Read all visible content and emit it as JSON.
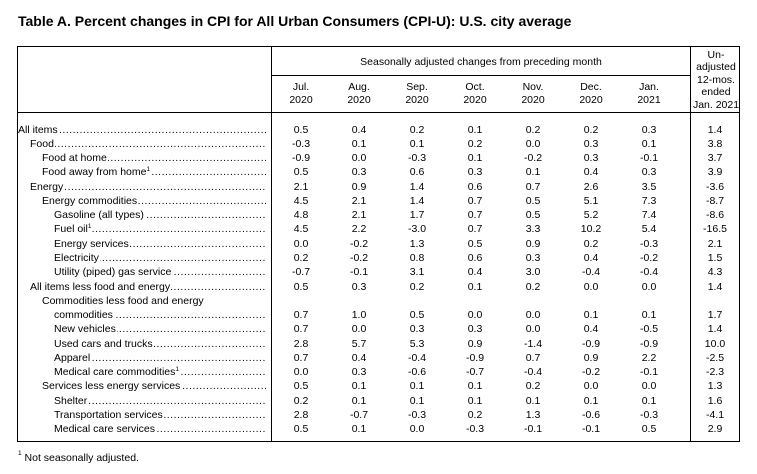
{
  "title": "Table A. Percent changes in CPI for All Urban Consumers (CPI-U): U.S. city average",
  "superheader": "Seasonally adjusted changes from preceding month",
  "columns": [
    {
      "line1": "Jul.",
      "line2": "2020"
    },
    {
      "line1": "Aug.",
      "line2": "2020"
    },
    {
      "line1": "Sep.",
      "line2": "2020"
    },
    {
      "line1": "Oct.",
      "line2": "2020"
    },
    {
      "line1": "Nov.",
      "line2": "2020"
    },
    {
      "line1": "Dec.",
      "line2": "2020"
    },
    {
      "line1": "Jan.",
      "line2": "2021"
    }
  ],
  "unadjusted_header": [
    "Un-",
    "adjusted",
    "12-mos.",
    "ended",
    "Jan. 2021"
  ],
  "rows": [
    {
      "label": "All items",
      "sup": "",
      "values": [
        "0.5",
        "0.4",
        "0.2",
        "0.1",
        "0.2",
        "0.2",
        "0.3",
        "1.4"
      ]
    },
    {
      "label": "Food",
      "sup": "",
      "values": [
        "-0.3",
        "0.1",
        "0.1",
        "0.2",
        "0.0",
        "0.3",
        "0.1",
        "3.8"
      ]
    },
    {
      "label": "Food at home",
      "sup": "",
      "values": [
        "-0.9",
        "0.0",
        "-0.3",
        "0.1",
        "-0.2",
        "0.3",
        "-0.1",
        "3.7"
      ]
    },
    {
      "label": "Food away from home",
      "sup": "1",
      "values": [
        "0.5",
        "0.3",
        "0.6",
        "0.3",
        "0.1",
        "0.4",
        "0.3",
        "3.9"
      ]
    },
    {
      "label": "Energy",
      "sup": "",
      "values": [
        "2.1",
        "0.9",
        "1.4",
        "0.6",
        "0.7",
        "2.6",
        "3.5",
        "-3.6"
      ]
    },
    {
      "label": "Energy commodities",
      "sup": "",
      "values": [
        "4.5",
        "2.1",
        "1.4",
        "0.7",
        "0.5",
        "5.1",
        "7.3",
        "-8.7"
      ]
    },
    {
      "label": "Gasoline (all types)",
      "sup": "",
      "values": [
        "4.8",
        "2.1",
        "1.7",
        "0.7",
        "0.5",
        "5.2",
        "7.4",
        "-8.6"
      ]
    },
    {
      "label": "Fuel oil",
      "sup": "1",
      "values": [
        "4.5",
        "2.2",
        "-3.0",
        "0.7",
        "3.3",
        "10.2",
        "5.4",
        "-16.5"
      ]
    },
    {
      "label": "Energy services",
      "sup": "",
      "values": [
        "0.0",
        "-0.2",
        "1.3",
        "0.5",
        "0.9",
        "0.2",
        "-0.3",
        "2.1"
      ]
    },
    {
      "label": "Electricity",
      "sup": "",
      "values": [
        "0.2",
        "-0.2",
        "0.8",
        "0.6",
        "0.3",
        "0.4",
        "-0.2",
        "1.5"
      ]
    },
    {
      "label": "Utility (piped) gas service",
      "sup": "",
      "values": [
        "-0.7",
        "-0.1",
        "3.1",
        "0.4",
        "3.0",
        "-0.4",
        "-0.4",
        "4.3"
      ]
    },
    {
      "label": "All items less food and energy",
      "sup": "",
      "values": [
        "0.5",
        "0.3",
        "0.2",
        "0.1",
        "0.2",
        "0.0",
        "0.0",
        "1.4"
      ]
    },
    {
      "label": "Commodities less food and energy",
      "sup": "",
      "values": []
    },
    {
      "label": "commodities",
      "sup": "",
      "values": [
        "0.7",
        "1.0",
        "0.5",
        "0.0",
        "0.0",
        "0.1",
        "0.1",
        "1.7"
      ]
    },
    {
      "label": "New vehicles",
      "sup": "",
      "values": [
        "0.7",
        "0.0",
        "0.3",
        "0.3",
        "0.0",
        "0.4",
        "-0.5",
        "1.4"
      ]
    },
    {
      "label": "Used cars and trucks",
      "sup": "",
      "values": [
        "2.8",
        "5.7",
        "5.3",
        "0.9",
        "-1.4",
        "-0.9",
        "-0.9",
        "10.0"
      ]
    },
    {
      "label": "Apparel",
      "sup": "",
      "values": [
        "0.7",
        "0.4",
        "-0.4",
        "-0.9",
        "0.7",
        "0.9",
        "2.2",
        "-2.5"
      ]
    },
    {
      "label": "Medical care commodities",
      "sup": "1",
      "values": [
        "0.0",
        "0.3",
        "-0.6",
        "-0.7",
        "-0.4",
        "-0.2",
        "-0.1",
        "-2.3"
      ]
    },
    {
      "label": "Services less energy services",
      "sup": "",
      "values": [
        "0.5",
        "0.1",
        "0.1",
        "0.1",
        "0.2",
        "0.0",
        "0.0",
        "1.3"
      ]
    },
    {
      "label": "Shelter",
      "sup": "",
      "values": [
        "0.2",
        "0.1",
        "0.1",
        "0.1",
        "0.1",
        "0.1",
        "0.1",
        "1.6"
      ]
    },
    {
      "label": "Transportation services",
      "sup": "",
      "values": [
        "2.8",
        "-0.7",
        "-0.3",
        "0.2",
        "1.3",
        "-0.6",
        "-0.3",
        "-4.1"
      ]
    },
    {
      "label": "Medical care services",
      "sup": "",
      "values": [
        "0.5",
        "0.1",
        "0.0",
        "-0.3",
        "-0.1",
        "-0.1",
        "0.5",
        "2.9"
      ]
    }
  ],
  "footnote_marker": "1",
  "footnote": " Not seasonally adjusted."
}
